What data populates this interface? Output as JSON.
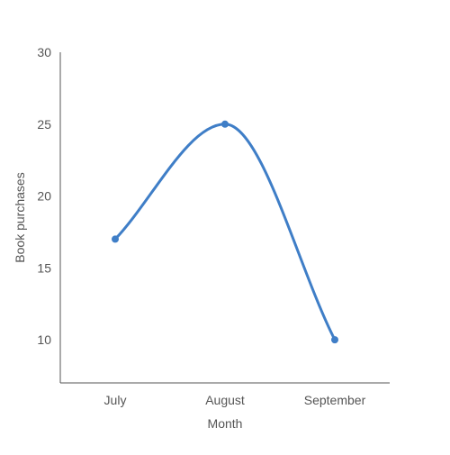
{
  "chart_data": {
    "type": "line",
    "title": "",
    "xlabel": "Month",
    "ylabel": "Book purchases",
    "categories": [
      "July",
      "August",
      "September"
    ],
    "series": [
      {
        "values": [
          17,
          25,
          10
        ],
        "color": "#3f7ec7"
      }
    ],
    "ylim": [
      7,
      30
    ],
    "yticks": [
      10,
      15,
      20,
      25,
      30
    ],
    "grid": false,
    "smooth": true,
    "markers": true
  }
}
